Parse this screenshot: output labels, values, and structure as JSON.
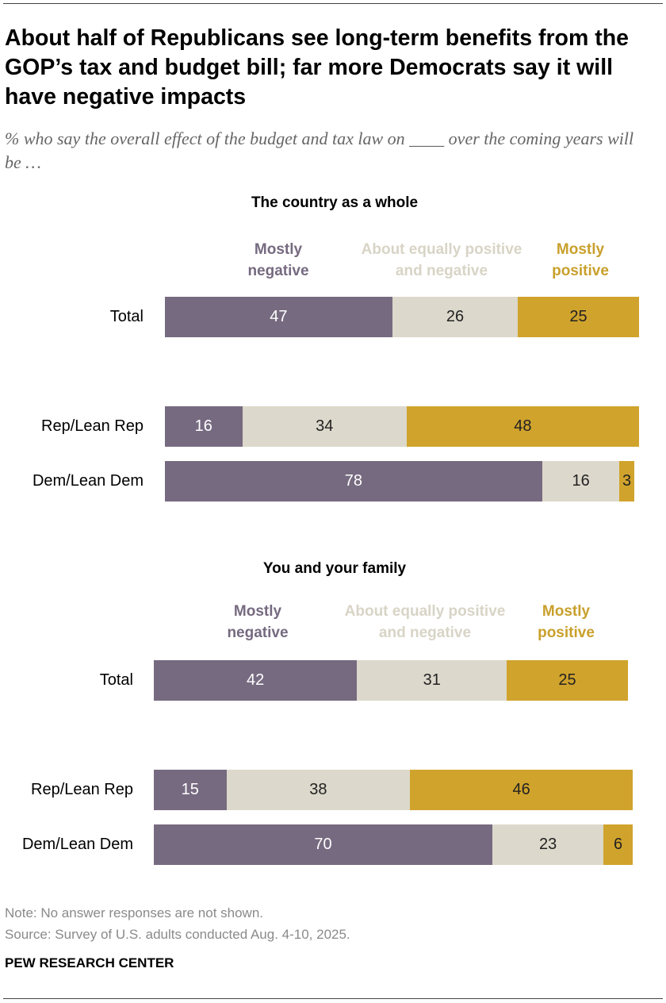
{
  "title": "About half of Republicans see long-term benefits from the GOP’s tax and budget bill; far more Democrats say it will have negative impacts",
  "subtitle": "% who say the overall effect of the budget and tax law on ____ over the coming years will be …",
  "colors": {
    "negative": "#766a80",
    "equal": "#dcd8cb",
    "positive": "#d0a32c",
    "legend_negative": "#766a80",
    "legend_equal": "#d8d4c6",
    "legend_positive": "#c9a02c"
  },
  "chart_data": [
    {
      "type": "bar",
      "stacked": true,
      "orientation": "horizontal",
      "title": "The country as a whole",
      "legend": {
        "negative": [
          "Mostly",
          "negative"
        ],
        "equal": [
          "About equally positive",
          "and negative"
        ],
        "positive": [
          "Mostly",
          "positive"
        ]
      },
      "categories": [
        "Total",
        "Rep/Lean Rep",
        "Dem/Lean Dem"
      ],
      "series": [
        {
          "name": "Mostly negative",
          "values": [
            47,
            16,
            78
          ]
        },
        {
          "name": "About equally positive and negative",
          "values": [
            26,
            34,
            16
          ]
        },
        {
          "name": "Mostly positive",
          "values": [
            25,
            48,
            3
          ]
        }
      ],
      "xlim": [
        0,
        100
      ]
    },
    {
      "type": "bar",
      "stacked": true,
      "orientation": "horizontal",
      "title": "You and your family",
      "legend": {
        "negative": [
          "Mostly",
          "negative"
        ],
        "equal": [
          "About equally positive",
          "and negative"
        ],
        "positive": [
          "Mostly",
          "positive"
        ]
      },
      "categories": [
        "Total",
        "Rep/Lean Rep",
        "Dem/Lean Dem"
      ],
      "series": [
        {
          "name": "Mostly negative",
          "values": [
            42,
            15,
            70
          ]
        },
        {
          "name": "About equally positive and negative",
          "values": [
            31,
            38,
            23
          ]
        },
        {
          "name": "Mostly positive",
          "values": [
            25,
            46,
            6
          ]
        }
      ],
      "xlim": [
        0,
        100
      ]
    }
  ],
  "note": "Note: No answer responses are not shown.",
  "source": "Source: Survey of U.S. adults conducted Aug. 4-10, 2025.",
  "brand": "PEW RESEARCH CENTER"
}
